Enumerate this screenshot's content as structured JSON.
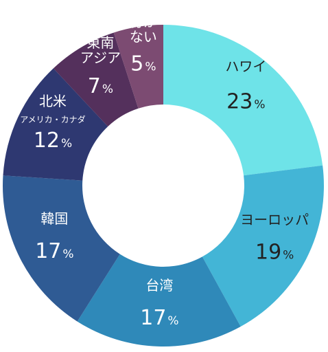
{
  "chart_data": {
    "type": "pie",
    "style": "donut",
    "slices": [
      {
        "label": "ハワイ",
        "value": 23,
        "value_label": "23",
        "color": "#6ee3e8",
        "text_color": "#222222"
      },
      {
        "label": "ヨーロッパ",
        "value": 19,
        "value_label": "19",
        "color": "#43b5d6",
        "text_color": "#222222"
      },
      {
        "label": "台湾",
        "value": 17,
        "value_label": "17",
        "color": "#2f89b9",
        "text_color": "#ffffff"
      },
      {
        "label": "韓国",
        "value": 17,
        "value_label": "17",
        "color": "#2f5b94",
        "text_color": "#ffffff"
      },
      {
        "label": "北米",
        "sublabel": "アメリカ・カナダ",
        "value": 12,
        "value_label": "12",
        "color": "#2e3871",
        "text_color": "#ffffff"
      },
      {
        "label": "東南アジア",
        "label_lines": [
          "東南",
          "アジア"
        ],
        "value": 7,
        "value_label": "7",
        "color": "#54305c",
        "text_color": "#ffffff"
      },
      {
        "label": "行かない",
        "label_lines": [
          "行か",
          "ない"
        ],
        "value": 5,
        "value_label": "5",
        "color": "#7c4b72",
        "text_color": "#ffffff"
      }
    ],
    "percent_sign": "%",
    "legend": "none"
  }
}
